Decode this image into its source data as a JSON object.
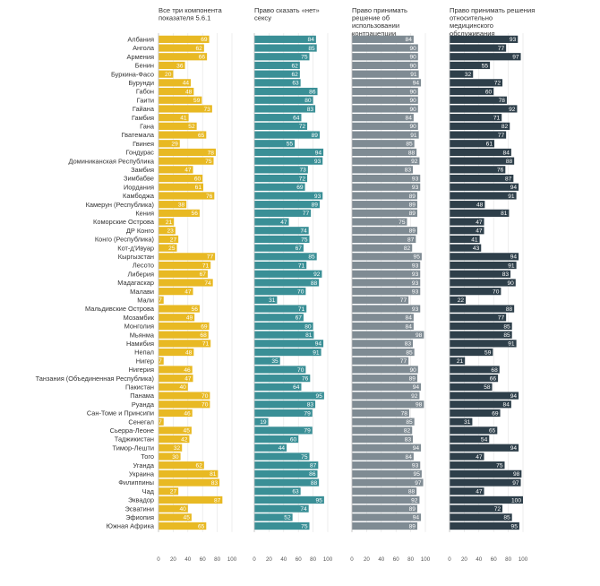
{
  "chart_data": {
    "type": "bar",
    "orientation": "horizontal",
    "categories": [
      "Албания",
      "Ангола",
      "Армения",
      "Бенин",
      "Буркина-Фасо",
      "Бурунди",
      "Габон",
      "Гаити",
      "Гайана",
      "Гамбия",
      "Гана",
      "Гватемала",
      "Гвинея",
      "Гондурас",
      "Доминиканская Республика",
      "Замбия",
      "Зимбабве",
      "Иордания",
      "Камбоджа",
      "Камерун (Республика)",
      "Кения",
      "Коморские Острова",
      "ДР Конго",
      "Конго (Республика)",
      "Кот-д'Ивуар",
      "Кыргызстан",
      "Лесото",
      "Либерия",
      "Мадагаскар",
      "Малави",
      "Мали",
      "Мальдивские Острова",
      "Мозамбик",
      "Монголия",
      "Мьянма",
      "Намибия",
      "Непал",
      "Нигер",
      "Нигерия",
      "Танзания (Объединенная Республика)",
      "Пакистан",
      "Панама",
      "Руанда",
      "Сан-Томе и Принсипи",
      "Сенегал",
      "Сьерра-Леоне",
      "Таджикистан",
      "Тимор-Лешти",
      "Того",
      "Уганда",
      "Украина",
      "Филиппины",
      "Чад",
      "Эквадор",
      "Эсватини",
      "Эфиопия",
      "Южная Африка"
    ],
    "xlim": [
      0,
      100
    ],
    "xticks": [
      0,
      20,
      40,
      60,
      80,
      100
    ],
    "series": [
      {
        "name": "Все три компонента показателя 5.6.1",
        "color": "#e8b923",
        "values": [
          69,
          62,
          66,
          36,
          20,
          44,
          48,
          59,
          73,
          41,
          52,
          65,
          29,
          78,
          75,
          47,
          60,
          61,
          76,
          38,
          56,
          21,
          23,
          27,
          25,
          77,
          71,
          67,
          74,
          47,
          7,
          56,
          49,
          69,
          68,
          71,
          48,
          7,
          46,
          47,
          40,
          70,
          70,
          46,
          7,
          45,
          42,
          32,
          30,
          62,
          81,
          83,
          27,
          87,
          40,
          45,
          65
        ]
      },
      {
        "name": "Право сказать «нет» сексу",
        "color": "#3a8f96",
        "values": [
          84,
          85,
          75,
          62,
          62,
          63,
          86,
          80,
          83,
          64,
          72,
          89,
          55,
          94,
          93,
          73,
          72,
          69,
          93,
          89,
          77,
          47,
          74,
          75,
          67,
          85,
          71,
          92,
          88,
          70,
          31,
          71,
          67,
          80,
          81,
          94,
          91,
          35,
          70,
          76,
          64,
          95,
          83,
          79,
          19,
          79,
          60,
          44,
          75,
          87,
          86,
          88,
          63,
          95,
          74,
          52,
          75
        ]
      },
      {
        "name": "Право принимать решение об использовании контрацепции",
        "color": "#7f8b93",
        "values": [
          84,
          90,
          90,
          90,
          91,
          94,
          90,
          90,
          90,
          84,
          90,
          91,
          85,
          88,
          92,
          83,
          93,
          93,
          89,
          89,
          89,
          75,
          89,
          87,
          82,
          95,
          93,
          93,
          93,
          93,
          77,
          93,
          84,
          84,
          98,
          83,
          85,
          77,
          90,
          89,
          94,
          92,
          98,
          78,
          85,
          82,
          83,
          94,
          84,
          93,
          95,
          97,
          88,
          92,
          89,
          94,
          89
        ]
      },
      {
        "name": "Право принимать решения относительно медицинского обслуживания",
        "color": "#2e3f4a",
        "values": [
          93,
          77,
          97,
          55,
          32,
          72,
          60,
          78,
          92,
          71,
          82,
          77,
          61,
          84,
          88,
          76,
          87,
          94,
          91,
          48,
          81,
          47,
          47,
          41,
          43,
          94,
          91,
          83,
          90,
          70,
          22,
          88,
          77,
          85,
          85,
          91,
          59,
          21,
          68,
          66,
          58,
          94,
          84,
          69,
          31,
          65,
          54,
          94,
          47,
          75,
          98,
          97,
          47,
          100,
          72,
          85,
          95
        ]
      }
    ]
  }
}
